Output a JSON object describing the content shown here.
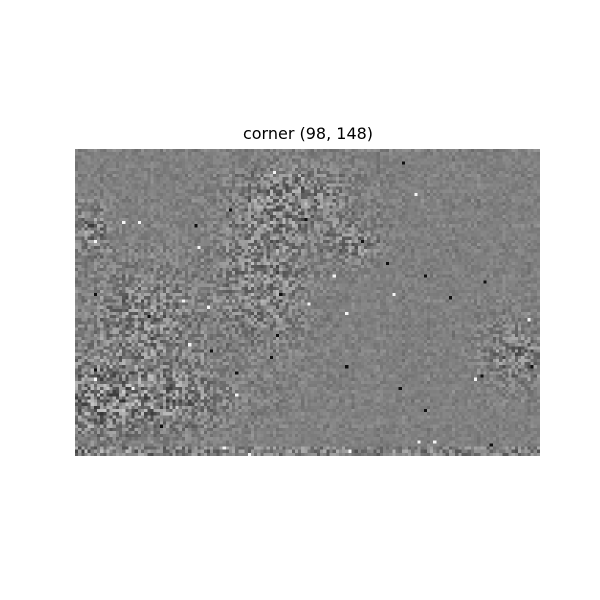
{
  "figure": {
    "title": "corner (98, 148)"
  },
  "image": {
    "description": "grayscale high-frequency filter response (DCT-like texture) over a natural image",
    "base_gray": "#808080",
    "grid_rows": 98,
    "grid_cols": 148
  }
}
